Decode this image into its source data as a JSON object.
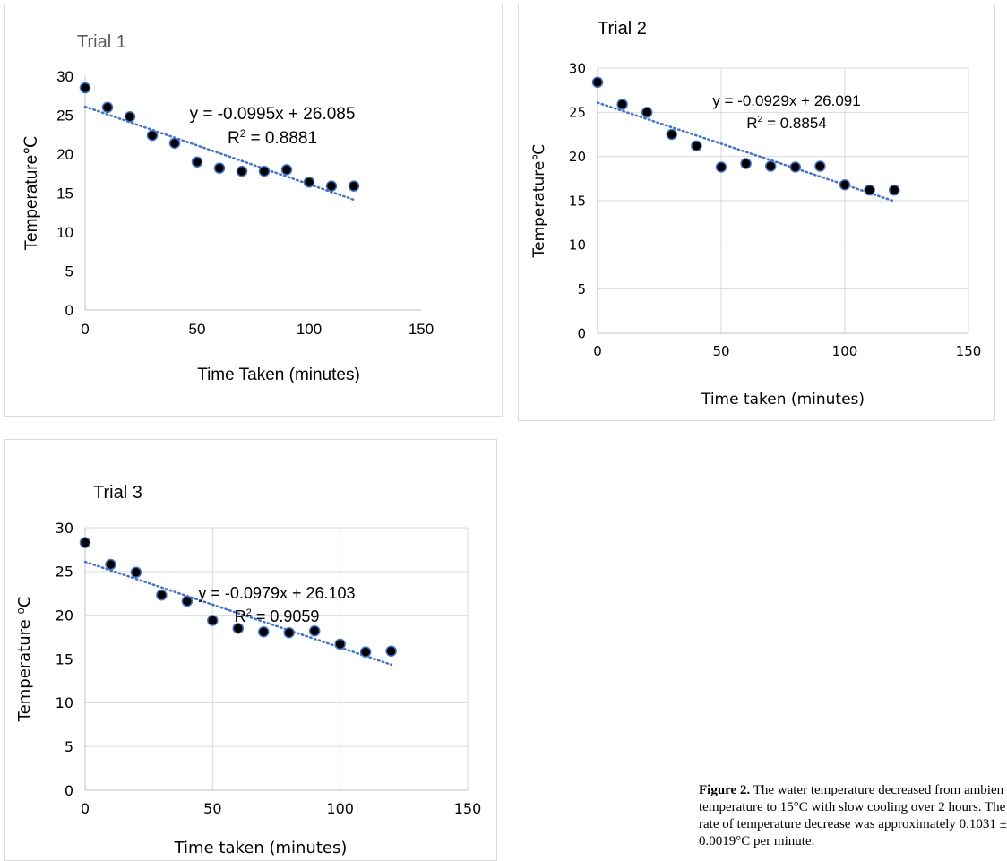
{
  "chart_data": [
    {
      "type": "scatter",
      "title": "Trial 1",
      "xlabel": "Time Taken (minutes)",
      "ylabel": "Temperature℃",
      "xlim": [
        0,
        150
      ],
      "ylim": [
        0,
        30
      ],
      "xticks": [
        0,
        50,
        100,
        150
      ],
      "yticks": [
        0,
        5,
        10,
        15,
        20,
        25,
        30
      ],
      "grid": false,
      "legend": "none",
      "x": [
        0,
        10,
        20,
        30,
        40,
        50,
        60,
        70,
        80,
        90,
        100,
        110,
        120
      ],
      "y": [
        28.5,
        26.0,
        24.8,
        22.4,
        21.4,
        19.0,
        18.2,
        17.8,
        17.8,
        18.0,
        16.4,
        15.9,
        15.9
      ],
      "trendline": {
        "slope": -0.0995,
        "intercept": 26.085,
        "equation": "y = -0.0995x + 26.085",
        "r2_prefix": "R",
        "r2_sup": "2",
        "r2_value": " = 0.8881"
      },
      "marker_color": "#000000",
      "marker_edge_color": "#4472c4",
      "trend_color": "#4472c4"
    },
    {
      "type": "scatter",
      "title": "Trial 2",
      "xlabel": "Time taken (minutes)",
      "ylabel": "Temperature℃",
      "xlim": [
        0,
        150
      ],
      "ylim": [
        0,
        30
      ],
      "xticks": [
        0,
        50,
        100,
        150
      ],
      "yticks": [
        0,
        5,
        10,
        15,
        20,
        25,
        30
      ],
      "grid": true,
      "legend": "none",
      "x": [
        0,
        10,
        20,
        30,
        40,
        50,
        60,
        70,
        80,
        90,
        100,
        110,
        120
      ],
      "y": [
        28.4,
        25.9,
        25.0,
        22.5,
        21.2,
        18.8,
        19.2,
        18.9,
        18.8,
        18.9,
        16.8,
        16.2,
        16.2
      ],
      "trendline": {
        "slope": -0.0929,
        "intercept": 26.091,
        "equation": "y = -0.0929x + 26.091",
        "r2_prefix": "R",
        "r2_sup": "2",
        "r2_value": " = 0.8854"
      },
      "marker_color": "#000000",
      "marker_edge_color": "#4472c4",
      "trend_color": "#4472c4"
    },
    {
      "type": "scatter",
      "title": "Trial 3",
      "xlabel": "Time taken (minutes)",
      "ylabel": "Temperature ⁰C",
      "xlim": [
        0,
        150
      ],
      "ylim": [
        0,
        30
      ],
      "xticks": [
        0,
        50,
        100,
        150
      ],
      "yticks": [
        0,
        5,
        10,
        15,
        20,
        25,
        30
      ],
      "grid": true,
      "legend": "none",
      "x": [
        0,
        10,
        20,
        30,
        40,
        50,
        60,
        70,
        80,
        90,
        100,
        110,
        120
      ],
      "y": [
        28.3,
        25.8,
        24.9,
        22.3,
        21.6,
        19.4,
        18.5,
        18.1,
        18.0,
        18.2,
        16.7,
        15.8,
        15.9
      ],
      "trendline": {
        "slope": -0.0979,
        "intercept": 26.103,
        "equation": "y = -0.0979x + 26.103",
        "r2_prefix": "R",
        "r2_sup": "2",
        "r2_value": " = 0.9059"
      },
      "marker_color": "#000000",
      "marker_edge_color": "#4472c4",
      "trend_color": "#4472c4"
    }
  ],
  "caption": {
    "bold": "Figure 2.",
    "lines": [
      " The water temperature decreased from ambien",
      "temperature to 15°C with slow cooling over 2 hours. The",
      "rate of temperature decrease was approximately 0.1031 ±",
      "0.0019°C per minute."
    ]
  }
}
